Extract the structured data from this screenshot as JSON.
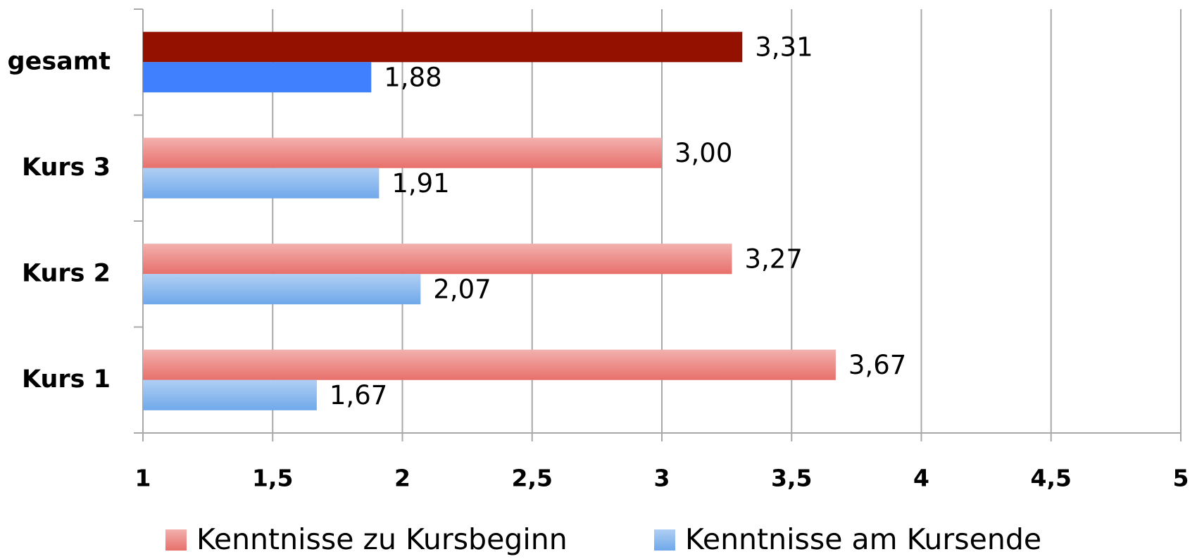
{
  "chart_data": {
    "type": "hbar",
    "categories": [
      "gesamt",
      "Kurs 3",
      "Kurs 2",
      "Kurs 1"
    ],
    "series": [
      {
        "name": "Kenntnisse zu Kursbeginn",
        "color": "#e8706b",
        "colors": [
          "#941100",
          "#e8706b",
          "#e8706b",
          "#e8706b"
        ],
        "values": [
          3.31,
          3.0,
          3.27,
          3.67
        ],
        "value_labels": [
          "3,31",
          "3,00",
          "3,27",
          "3,67"
        ]
      },
      {
        "name": "Kenntnisse am Kursende",
        "color": "#6fa8ea",
        "colors": [
          "#4080ff",
          "#6fa8ea",
          "#6fa8ea",
          "#6fa8ea"
        ],
        "values": [
          1.88,
          1.91,
          2.07,
          1.67
        ],
        "value_labels": [
          "1,88",
          "1,91",
          "2,07",
          "1,67"
        ]
      }
    ],
    "xlim": [
      1,
      5
    ],
    "xticks": [
      1,
      {
        "value": 1.5,
        "label": "1,5"
      },
      2,
      {
        "value": 2.5,
        "label": "2,5"
      },
      3,
      {
        "value": 3.5,
        "label": "3,5"
      },
      4,
      {
        "value": 4.5,
        "label": "4,5"
      },
      5
    ],
    "grid": true,
    "legend": "bottom"
  }
}
